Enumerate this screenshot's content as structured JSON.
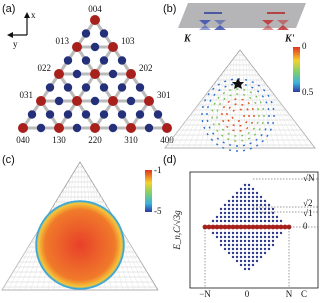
{
  "panels": {
    "a": "(a)",
    "b": "(b)",
    "c": "(c)",
    "d": "(d)"
  },
  "panel_a": {
    "axis_x": "x",
    "axis_y": "y",
    "apex": "004",
    "left": [
      "013",
      "022",
      "031"
    ],
    "right": [
      "103",
      "202",
      "301"
    ],
    "bottom": [
      "040",
      "130",
      "220",
      "310",
      "400"
    ]
  },
  "panel_b": {
    "valley_left": "K",
    "valley_right": "K'",
    "colorbar": [
      "0",
      "0.5"
    ]
  },
  "panel_c": {
    "colorbar": [
      "-1",
      "-5"
    ]
  },
  "panel_d": {
    "y_label": "E_n,C/√3g",
    "y_ticks": [
      "√N",
      "√2",
      "√1",
      "0"
    ],
    "x_ticks": [
      "−N",
      "0",
      "N"
    ],
    "x_label": "C"
  }
}
